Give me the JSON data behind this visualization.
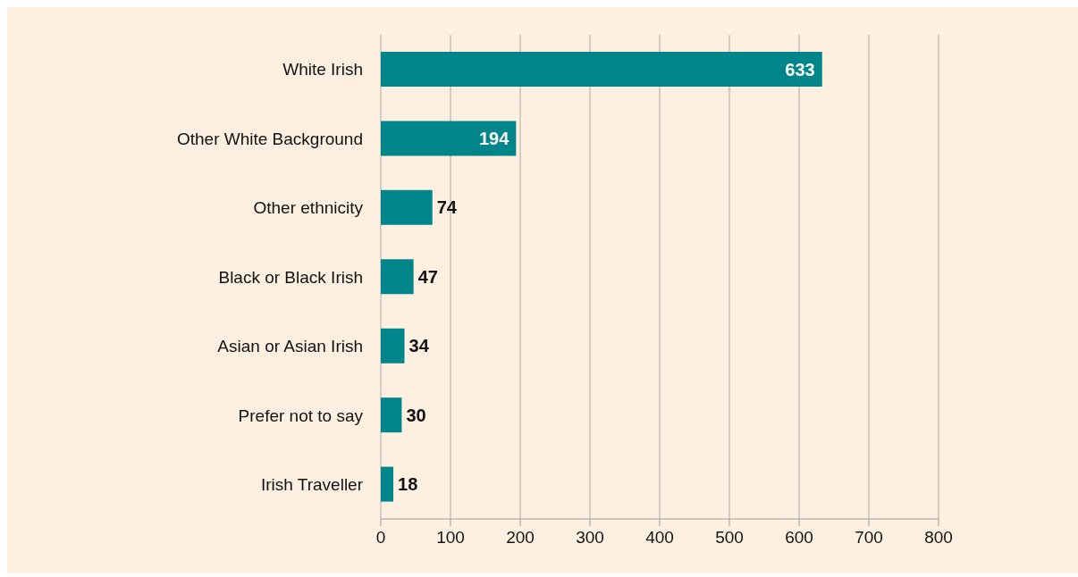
{
  "chart_data": {
    "type": "bar",
    "orientation": "horizontal",
    "categories": [
      "White Irish",
      "Other White Background",
      "Other ethnicity",
      "Black or Black Irish",
      "Asian or Asian Irish",
      "Prefer not to say",
      "Irish Traveller"
    ],
    "values": [
      633,
      194,
      74,
      47,
      34,
      30,
      18
    ],
    "color": "#00868a",
    "xlim": [
      0,
      800
    ],
    "xticks": [
      0,
      100,
      200,
      300,
      400,
      500,
      600,
      700,
      800
    ],
    "grid": "x",
    "data_labels": true
  }
}
